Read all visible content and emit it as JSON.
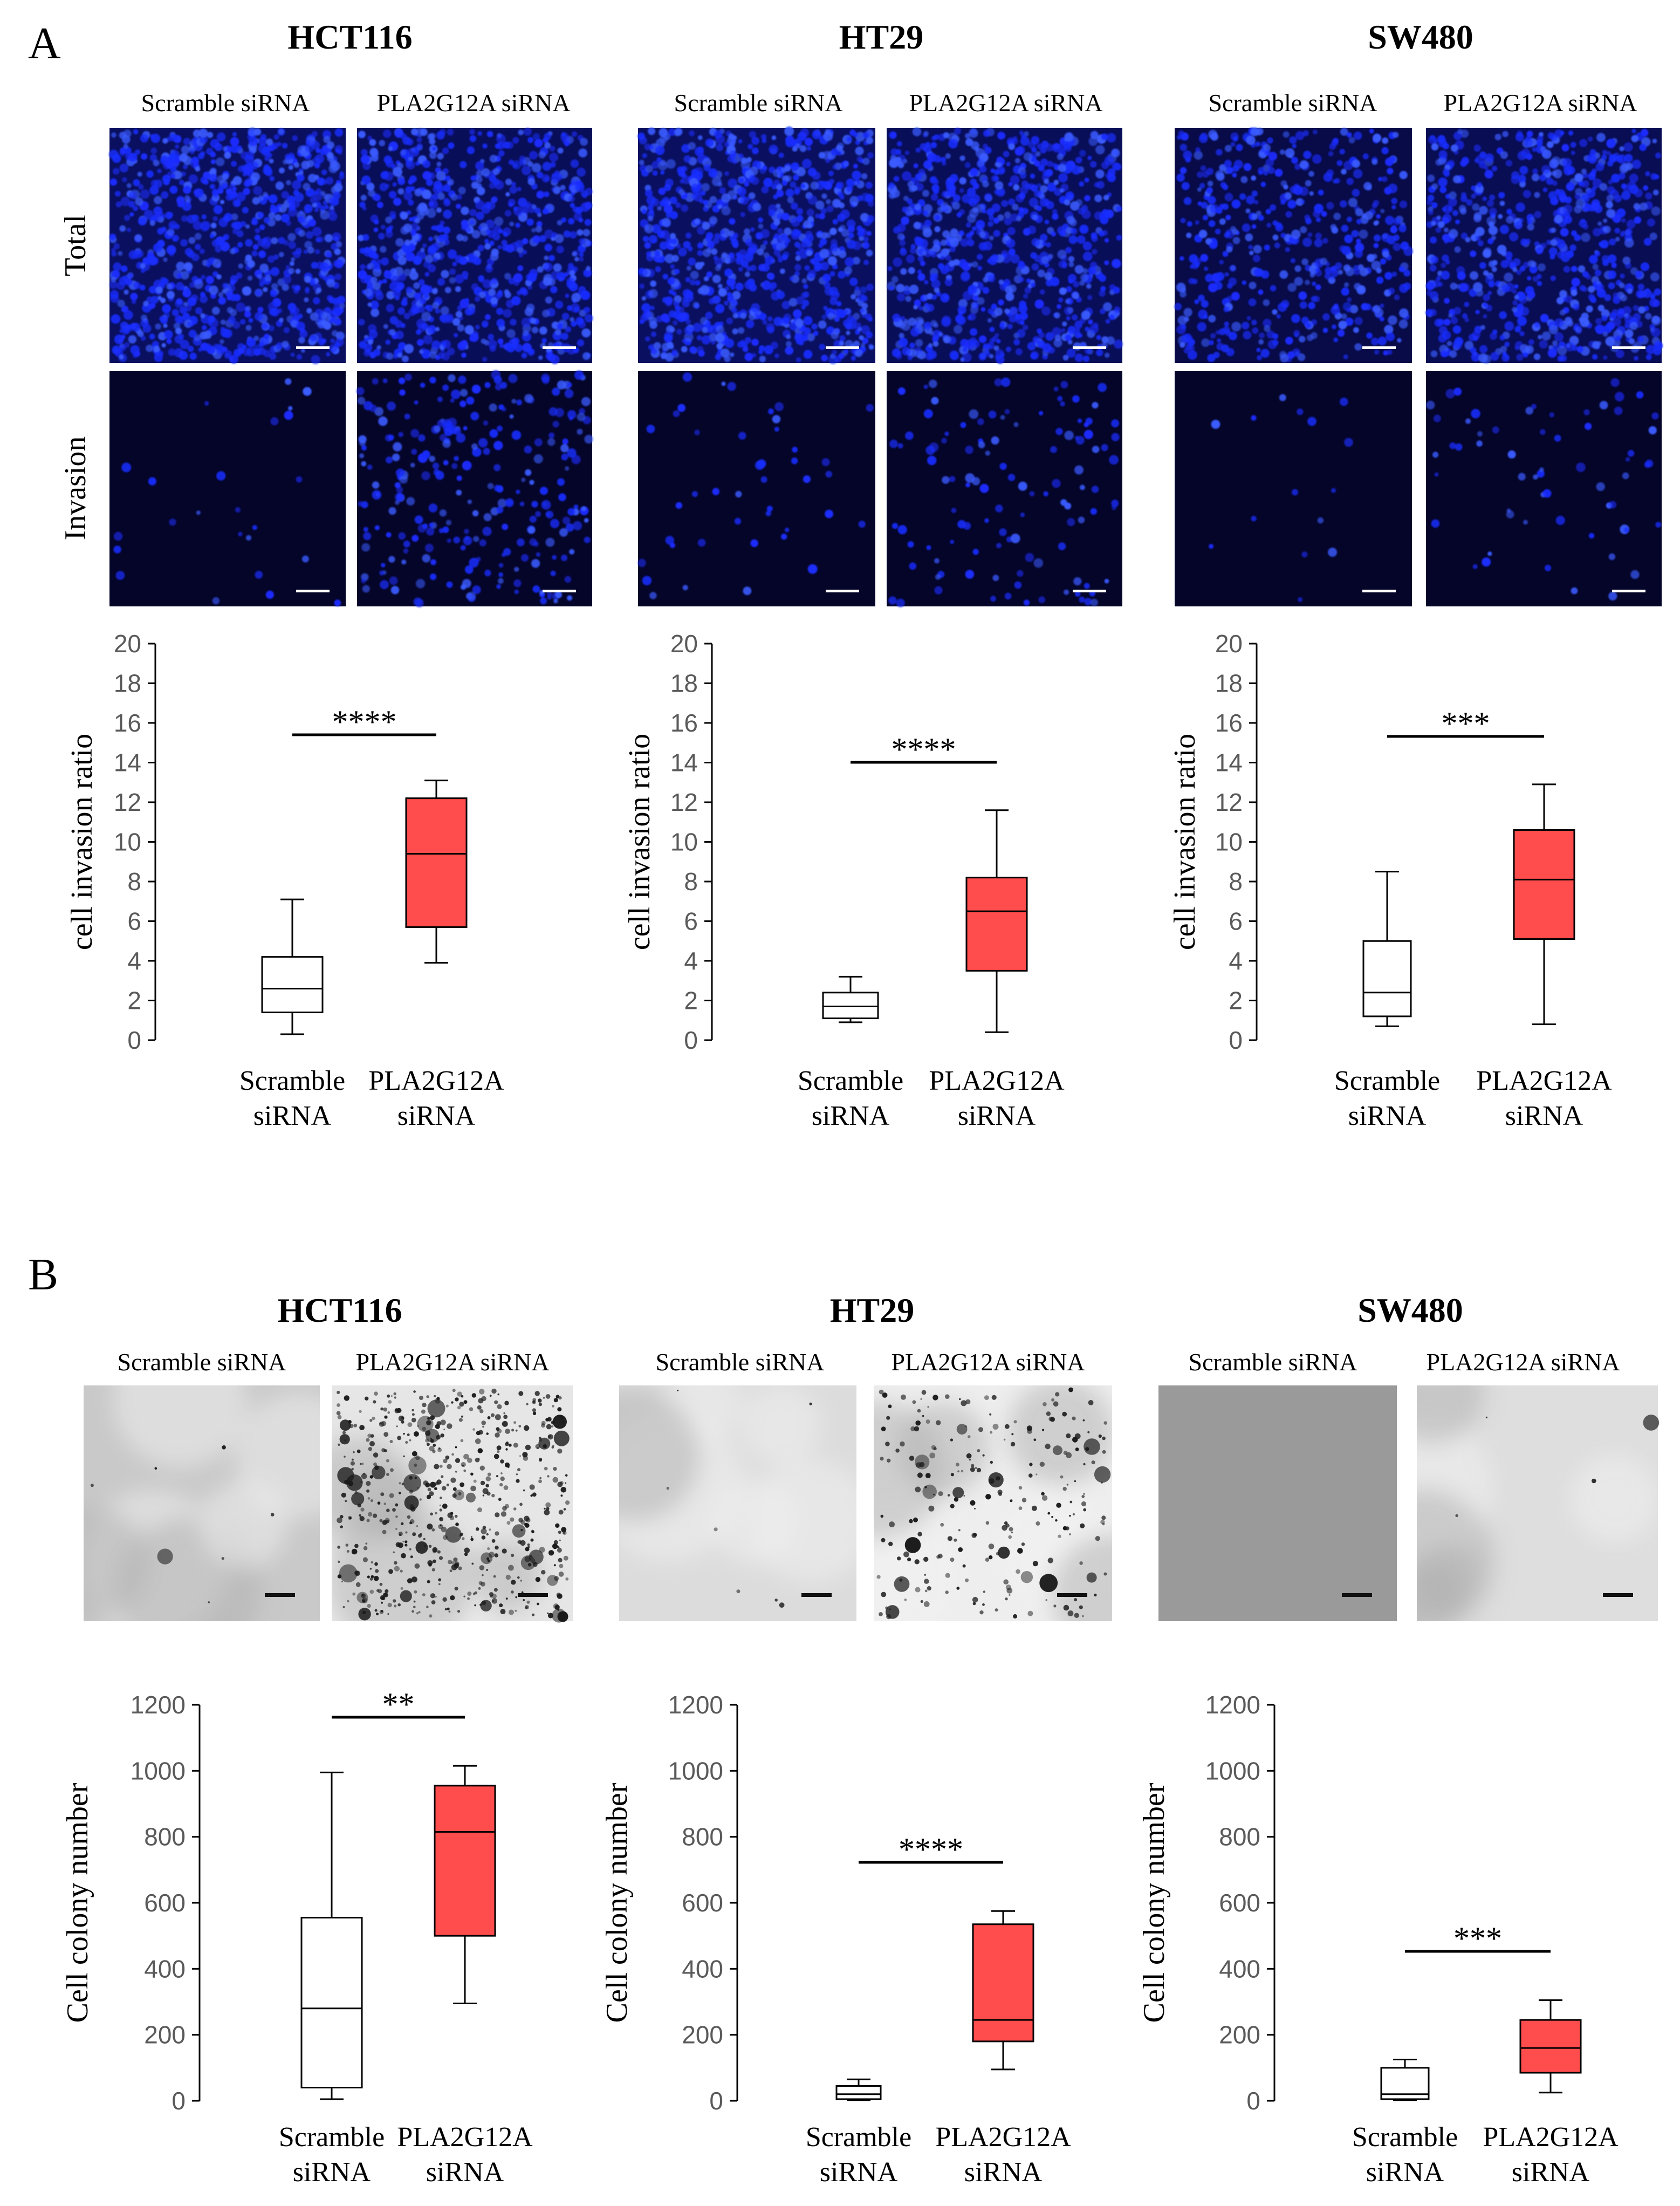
{
  "panel_letters": [
    "A",
    "B"
  ],
  "panelA": {
    "cell_lines": [
      "HCT116",
      "HT29",
      "SW480"
    ],
    "conditions": [
      "Scramble siRNA",
      "PLA2G12A siRNA"
    ],
    "row_labels": [
      "Total",
      "Invasion"
    ],
    "micro_style": "fluorescent-blue",
    "colors": {
      "fluor_dark": "#05052a",
      "fluor_cell": "#1a2dff",
      "box_control": "#ffffff",
      "box_treated": "#ff4c4c"
    }
  },
  "panelB": {
    "cell_lines": [
      "HCT116",
      "HT29",
      "SW480"
    ],
    "conditions": [
      "Scramble siRNA",
      "PLA2G12A siRNA"
    ],
    "micro_style": "brightfield-grey",
    "colors": {
      "bf_light": "#e2e2e2",
      "bf_sw480": "#9a9a9a",
      "colony": "#1a1a1a"
    }
  },
  "chart_data": [
    {
      "type": "box",
      "panel": "A",
      "cell_line": "HCT116",
      "ylabel": "cell invasion ratio",
      "ylim": [
        0,
        20
      ],
      "yticks": [
        0,
        2,
        4,
        6,
        8,
        10,
        12,
        14,
        16,
        18,
        20
      ],
      "categories": [
        "Scramble\nsiRNA",
        "PLA2G12A\nsiRNA"
      ],
      "significance": "****",
      "boxes": [
        {
          "min": 0.3,
          "q1": 1.4,
          "median": 2.6,
          "q3": 4.2,
          "max": 7.1
        },
        {
          "min": 3.9,
          "q1": 5.7,
          "median": 9.4,
          "q3": 12.2,
          "max": 13.1
        }
      ]
    },
    {
      "type": "box",
      "panel": "A",
      "cell_line": "HT29",
      "ylabel": "cell invasion ratio",
      "ylim": [
        0,
        20
      ],
      "yticks": [
        0,
        2,
        4,
        6,
        8,
        10,
        12,
        14,
        16,
        18,
        20
      ],
      "categories": [
        "Scramble\nsiRNA",
        "PLA2G12A\nsiRNA"
      ],
      "significance": "****",
      "boxes": [
        {
          "min": 0.9,
          "q1": 1.1,
          "median": 1.7,
          "q3": 2.4,
          "max": 3.2
        },
        {
          "min": 0.4,
          "q1": 3.5,
          "median": 6.5,
          "q3": 8.2,
          "max": 11.6
        }
      ]
    },
    {
      "type": "box",
      "panel": "A",
      "cell_line": "SW480",
      "ylabel": "cell invasion ratio",
      "ylim": [
        0,
        20
      ],
      "yticks": [
        0,
        2,
        4,
        6,
        8,
        10,
        12,
        14,
        16,
        18,
        20
      ],
      "categories": [
        "Scramble\nsiRNA",
        "PLA2G12A\nsiRNA"
      ],
      "significance": "***",
      "boxes": [
        {
          "min": 0.7,
          "q1": 1.2,
          "median": 2.4,
          "q3": 5.0,
          "max": 8.5
        },
        {
          "min": 0.8,
          "q1": 5.1,
          "median": 8.1,
          "q3": 10.6,
          "max": 12.9
        }
      ]
    },
    {
      "type": "box",
      "panel": "B",
      "cell_line": "HCT116",
      "ylabel": "Cell colony number",
      "ylim": [
        0,
        1200
      ],
      "yticks": [
        0,
        200,
        400,
        600,
        800,
        1000,
        1200
      ],
      "categories": [
        "Scramble\nsiRNA",
        "PLA2G12A\nsiRNA"
      ],
      "significance": "**",
      "boxes": [
        {
          "min": 5,
          "q1": 40,
          "median": 280,
          "q3": 555,
          "max": 995
        },
        {
          "min": 295,
          "q1": 500,
          "median": 815,
          "q3": 955,
          "max": 1015
        }
      ]
    },
    {
      "type": "box",
      "panel": "B",
      "cell_line": "HT29",
      "ylabel": "Cell colony number",
      "ylim": [
        0,
        1200
      ],
      "yticks": [
        0,
        200,
        400,
        600,
        800,
        1000,
        1200
      ],
      "categories": [
        "Scramble\nsiRNA",
        "PLA2G12A\nsiRNA"
      ],
      "significance": "****",
      "boxes": [
        {
          "min": 2,
          "q1": 5,
          "median": 20,
          "q3": 45,
          "max": 65
        },
        {
          "min": 95,
          "q1": 180,
          "median": 245,
          "q3": 535,
          "max": 575
        }
      ]
    },
    {
      "type": "box",
      "panel": "B",
      "cell_line": "SW480",
      "ylabel": "Cell colony number",
      "ylim": [
        0,
        1200
      ],
      "yticks": [
        0,
        200,
        400,
        600,
        800,
        1000,
        1200
      ],
      "categories": [
        "Scramble\nsiRNA",
        "PLA2G12A\nsiRNA"
      ],
      "significance": "***",
      "boxes": [
        {
          "min": 2,
          "q1": 5,
          "median": 20,
          "q3": 100,
          "max": 125
        },
        {
          "min": 25,
          "q1": 85,
          "median": 160,
          "q3": 245,
          "max": 305
        }
      ]
    }
  ]
}
